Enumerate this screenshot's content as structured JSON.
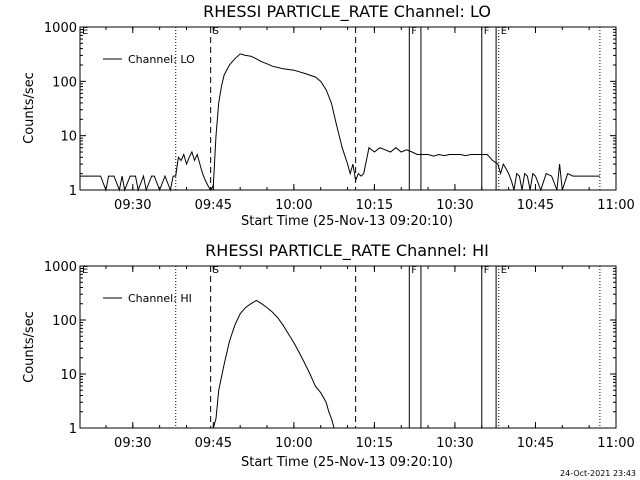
{
  "timestamp": "24-Oct-2021 23:43",
  "chart_data": [
    {
      "type": "line",
      "title": "RHESSI PARTICLE_RATE Channel: LO",
      "xlabel": "Start Time (25-Nov-13 09:20:10)",
      "ylabel": "Counts/sec",
      "xlim": [
        "09:20:10",
        "11:00:00"
      ],
      "ylim": [
        1,
        1000
      ],
      "y_scale": "log",
      "x_ticks": [
        "09:30",
        "09:45",
        "10:00",
        "10:15",
        "10:30",
        "10:45",
        "11:00"
      ],
      "y_ticks": [
        "1",
        "10",
        "100",
        "1000"
      ],
      "legend": {
        "label": "Channel: LO",
        "position": "top-left"
      },
      "markers": [
        {
          "time": "09:20:10",
          "style": "solid",
          "label": "E"
        },
        {
          "time": "09:38:00",
          "style": "dotted",
          "label": ""
        },
        {
          "time": "09:44:30",
          "style": "dashed",
          "label": "S"
        },
        {
          "time": "10:11:30",
          "style": "dashed",
          "label": ""
        },
        {
          "time": "10:21:30",
          "style": "solid",
          "label": "F"
        },
        {
          "time": "10:23:40",
          "style": "solid",
          "label": ""
        },
        {
          "time": "10:35:00",
          "style": "solid",
          "label": "F"
        },
        {
          "time": "10:37:40",
          "style": "solid",
          "label": ""
        },
        {
          "time": "10:38:10",
          "style": "dotted",
          "label": "E"
        },
        {
          "time": "10:57:00",
          "style": "dotted",
          "label": ""
        }
      ],
      "series": [
        {
          "name": "Channel: LO",
          "x": [
            "09:20:10",
            "09:24:00",
            "09:25:00",
            "09:25:30",
            "09:26:30",
            "09:27:30",
            "09:28:00",
            "09:28:30",
            "09:29:30",
            "09:30:30",
            "09:31:00",
            "09:32:00",
            "09:32:30",
            "09:33:30",
            "09:34:00",
            "09:35:00",
            "09:36:00",
            "09:37:00",
            "09:37:30",
            "09:38:00",
            "09:38:30",
            "09:39:00",
            "09:39:30",
            "09:40:00",
            "09:40:30",
            "09:41:00",
            "09:41:30",
            "09:42:00",
            "09:42:30",
            "09:43:00",
            "09:43:30",
            "09:44:00",
            "09:44:30",
            "09:45:00",
            "09:45:30",
            "09:46:00",
            "09:46:30",
            "09:47:00",
            "09:48:00",
            "09:49:00",
            "09:50:00",
            "09:51:00",
            "09:52:00",
            "09:53:00",
            "09:54:00",
            "09:55:00",
            "09:56:00",
            "09:57:00",
            "09:58:00",
            "10:00:00",
            "10:02:00",
            "10:04:00",
            "10:05:00",
            "10:06:00",
            "10:07:00",
            "10:08:00",
            "10:09:00",
            "10:10:00",
            "10:10:30",
            "10:11:00",
            "10:11:30",
            "10:12:00",
            "10:12:30",
            "10:13:00",
            "10:14:00",
            "10:15:00",
            "10:16:00",
            "10:17:00",
            "10:18:00",
            "10:19:00",
            "10:20:00",
            "10:21:00",
            "10:22:00",
            "10:23:00",
            "10:24:00",
            "10:25:00",
            "10:26:00",
            "10:27:00",
            "10:28:00",
            "10:29:00",
            "10:30:00",
            "10:31:00",
            "10:32:00",
            "10:33:00",
            "10:34:00",
            "10:35:00",
            "10:36:00",
            "10:36:30",
            "10:37:00",
            "10:38:00",
            "10:38:30",
            "10:39:00",
            "10:39:30",
            "10:40:00",
            "10:40:30",
            "10:41:00",
            "10:41:30",
            "10:42:00",
            "10:42:30",
            "10:43:00",
            "10:43:30",
            "10:44:00",
            "10:44:30",
            "10:45:00",
            "10:46:00",
            "10:47:00",
            "10:48:00",
            "10:49:00",
            "10:49:30",
            "10:50:00",
            "10:51:00",
            "10:52:00",
            "10:53:00",
            "10:54:00",
            "10:55:00",
            "10:56:00",
            "10:57:00"
          ],
          "y": [
            1.8,
            1.8,
            1,
            1.8,
            1.8,
            1,
            1.8,
            1,
            1.8,
            1.8,
            1,
            1.8,
            1,
            1.8,
            1.8,
            1,
            1.8,
            1,
            1.8,
            1.8,
            4,
            3.5,
            4.5,
            3,
            4,
            5,
            3.5,
            4.5,
            3,
            2,
            1.5,
            1.2,
            1,
            1.2,
            10,
            40,
            80,
            130,
            200,
            260,
            320,
            300,
            290,
            260,
            230,
            210,
            190,
            180,
            170,
            160,
            140,
            120,
            100,
            70,
            40,
            15,
            6,
            3,
            2,
            3,
            1.5,
            2,
            1.8,
            2,
            6,
            5,
            6,
            5.5,
            5,
            6,
            5,
            5.5,
            5,
            4.5,
            4.5,
            4.5,
            4.2,
            4.5,
            4.3,
            4.5,
            4.5,
            4.5,
            4.3,
            4.5,
            4.5,
            4.5,
            4.5,
            4,
            3.5,
            3,
            2,
            3,
            2.5,
            2,
            1.5,
            1,
            2,
            1.8,
            1,
            2,
            1.8,
            1,
            2,
            1.8,
            1,
            2,
            1.8,
            1,
            3,
            1,
            2,
            1.8,
            1.8,
            1.8,
            1.8,
            1.8,
            1.8
          ]
        }
      ]
    },
    {
      "type": "line",
      "title": "RHESSI PARTICLE_RATE Channel: HI",
      "xlabel": "Start Time (25-Nov-13 09:20:10)",
      "ylabel": "Counts/sec",
      "xlim": [
        "09:20:10",
        "11:00:00"
      ],
      "ylim": [
        1,
        1000
      ],
      "y_scale": "log",
      "x_ticks": [
        "09:30",
        "09:45",
        "10:00",
        "10:15",
        "10:30",
        "10:45",
        "11:00"
      ],
      "y_ticks": [
        "1",
        "10",
        "100",
        "1000"
      ],
      "legend": {
        "label": "Channel: HI",
        "position": "top-left"
      },
      "markers": [
        {
          "time": "09:20:10",
          "style": "solid",
          "label": "E"
        },
        {
          "time": "09:38:00",
          "style": "dotted",
          "label": ""
        },
        {
          "time": "09:44:30",
          "style": "dashed",
          "label": "S"
        },
        {
          "time": "10:11:30",
          "style": "dashed",
          "label": ""
        },
        {
          "time": "10:21:30",
          "style": "solid",
          "label": "F"
        },
        {
          "time": "10:23:40",
          "style": "solid",
          "label": ""
        },
        {
          "time": "10:35:00",
          "style": "solid",
          "label": "F"
        },
        {
          "time": "10:37:40",
          "style": "solid",
          "label": ""
        },
        {
          "time": "10:38:10",
          "style": "dotted",
          "label": "E"
        },
        {
          "time": "10:57:00",
          "style": "dotted",
          "label": ""
        }
      ],
      "series": [
        {
          "name": "Channel: HI",
          "x": [
            "09:45:00",
            "09:45:30",
            "09:46:00",
            "09:47:00",
            "09:48:00",
            "09:49:00",
            "09:50:00",
            "09:51:00",
            "09:52:00",
            "09:53:00",
            "09:54:00",
            "09:55:00",
            "09:56:00",
            "09:57:00",
            "09:58:00",
            "09:59:00",
            "10:00:00",
            "10:01:00",
            "10:02:00",
            "10:03:00",
            "10:04:00",
            "10:05:00",
            "10:06:00",
            "10:06:30",
            "10:07:00",
            "10:07:30"
          ],
          "y": [
            1,
            1.5,
            5,
            15,
            40,
            80,
            130,
            170,
            200,
            230,
            200,
            170,
            140,
            110,
            80,
            55,
            38,
            25,
            16,
            10,
            6,
            4.5,
            3,
            2,
            1.5,
            1
          ]
        }
      ]
    }
  ]
}
